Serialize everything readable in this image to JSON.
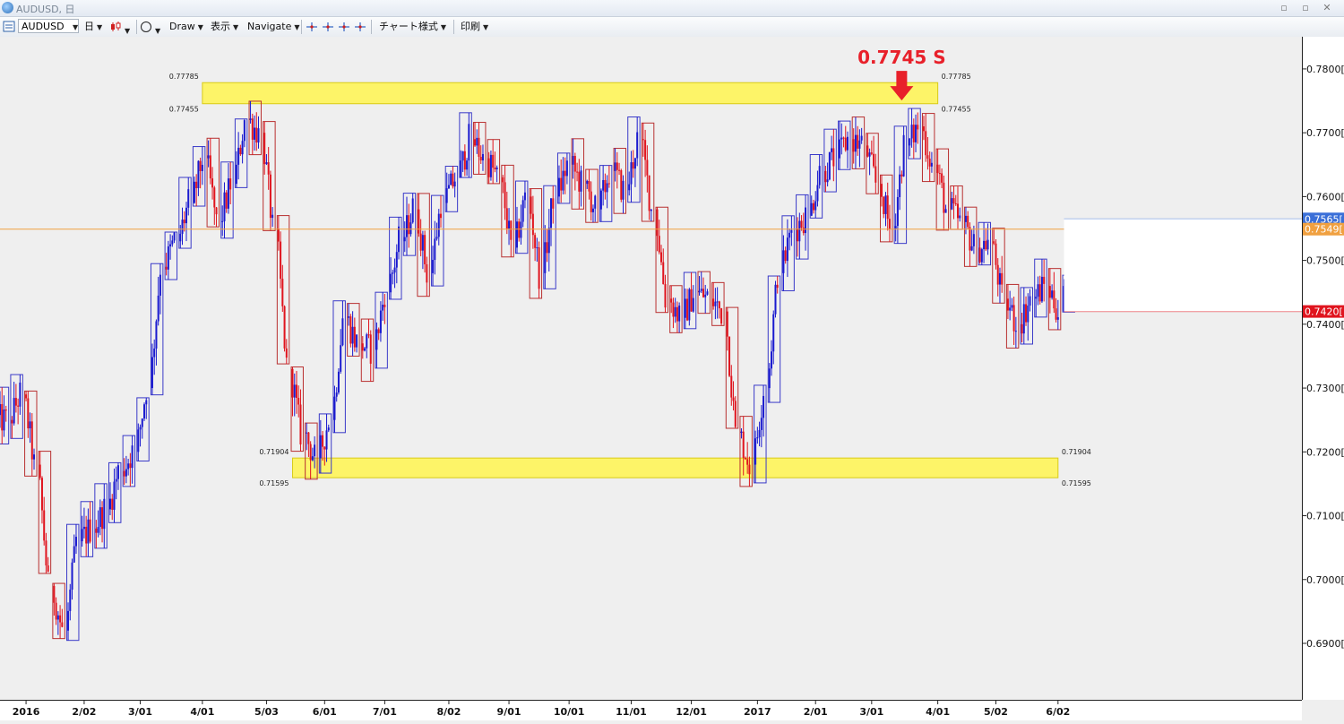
{
  "window": {
    "title": "AUDUSD, 日",
    "buttons": [
      "▫",
      "▫",
      "✕"
    ]
  },
  "toolbar": {
    "symbol": "AUDUSD",
    "period": "日",
    "draw": "Draw",
    "view": "表示",
    "navigate": "Navigate",
    "chart_style": "チャート様式",
    "print": "印刷"
  },
  "colors": {
    "bull": "#1a1acf",
    "bear": "#e0141e",
    "zone": "#fff55a",
    "price_line": "#f0a040",
    "annotation": "#e8202a"
  },
  "chart_data": {
    "type": "candlestick",
    "symbol": "AUDUSD",
    "timeframe": "日",
    "ylim": [
      0.682,
      0.7842
    ],
    "yticks": [
      "0.7800[",
      "0.7700[",
      "0.7600[",
      "0.7500[",
      "0.7400[",
      "0.7300[",
      "0.7200[",
      "0.7100[",
      "0.7000[",
      "0.6900["
    ],
    "ytick_values": [
      0.78,
      0.77,
      0.76,
      0.75,
      0.74,
      0.73,
      0.72,
      0.71,
      0.7,
      0.69
    ],
    "x_date_range": [
      "2015-12-22",
      "2017-06-07"
    ],
    "xticks": [
      {
        "label": "2016",
        "date": "2016-01-04"
      },
      {
        "label": "2/02",
        "date": "2016-02-02"
      },
      {
        "label": "3/01",
        "date": "2016-03-01"
      },
      {
        "label": "4/01",
        "date": "2016-04-01"
      },
      {
        "label": "5/03",
        "date": "2016-05-03"
      },
      {
        "label": "6/01",
        "date": "2016-06-01"
      },
      {
        "label": "7/01",
        "date": "2016-07-01"
      },
      {
        "label": "8/02",
        "date": "2016-08-02"
      },
      {
        "label": "9/01",
        "date": "2016-09-01"
      },
      {
        "label": "10/01",
        "date": "2016-10-01"
      },
      {
        "label": "11/01",
        "date": "2016-11-01"
      },
      {
        "label": "12/01",
        "date": "2016-12-01"
      },
      {
        "label": "2017",
        "date": "2017-01-03"
      },
      {
        "label": "2/01",
        "date": "2017-02-01"
      },
      {
        "label": "3/01",
        "date": "2017-03-01"
      },
      {
        "label": "4/01",
        "date": "2017-04-03"
      },
      {
        "label": "5/02",
        "date": "2017-05-02"
      },
      {
        "label": "6/02",
        "date": "2017-06-02"
      }
    ],
    "weekly_path": [
      [
        "2015-12-21",
        0.725
      ],
      [
        "2015-12-28",
        0.729
      ],
      [
        "2016-01-04",
        0.718
      ],
      [
        "2016-01-11",
        0.699
      ],
      [
        "2016-01-18",
        0.692
      ],
      [
        "2016-01-25",
        0.706
      ],
      [
        "2016-02-01",
        0.708
      ],
      [
        "2016-02-08",
        0.711
      ],
      [
        "2016-02-15",
        0.717
      ],
      [
        "2016-02-22",
        0.72
      ],
      [
        "2016-02-29",
        0.73
      ],
      [
        "2016-03-07",
        0.749
      ],
      [
        "2016-03-14",
        0.753
      ],
      [
        "2016-03-21",
        0.759
      ],
      [
        "2016-03-28",
        0.766
      ],
      [
        "2016-04-04",
        0.756
      ],
      [
        "2016-04-11",
        0.762
      ],
      [
        "2016-04-18",
        0.772
      ],
      [
        "2016-04-25",
        0.77
      ],
      [
        "2016-05-02",
        0.755
      ],
      [
        "2016-05-09",
        0.733
      ],
      [
        "2016-05-16",
        0.723
      ],
      [
        "2016-05-23",
        0.719
      ],
      [
        "2016-05-30",
        0.725
      ],
      [
        "2016-06-06",
        0.741
      ],
      [
        "2016-06-13",
        0.737
      ],
      [
        "2016-06-20",
        0.736
      ],
      [
        "2016-06-27",
        0.745
      ],
      [
        "2016-07-04",
        0.753
      ],
      [
        "2016-07-11",
        0.758
      ],
      [
        "2016-07-18",
        0.748
      ],
      [
        "2016-07-25",
        0.759
      ],
      [
        "2016-08-01",
        0.763
      ],
      [
        "2016-08-08",
        0.769
      ],
      [
        "2016-08-15",
        0.766
      ],
      [
        "2016-08-22",
        0.763
      ],
      [
        "2016-08-29",
        0.752
      ],
      [
        "2016-09-05",
        0.76
      ],
      [
        "2016-09-12",
        0.748
      ],
      [
        "2016-09-19",
        0.76
      ],
      [
        "2016-09-26",
        0.765
      ],
      [
        "2016-10-03",
        0.762
      ],
      [
        "2016-10-10",
        0.758
      ],
      [
        "2016-10-17",
        0.764
      ],
      [
        "2016-10-24",
        0.761
      ],
      [
        "2016-10-31",
        0.769
      ],
      [
        "2016-11-07",
        0.758
      ],
      [
        "2016-11-14",
        0.744
      ],
      [
        "2016-11-21",
        0.741
      ],
      [
        "2016-11-28",
        0.745
      ],
      [
        "2016-12-05",
        0.744
      ],
      [
        "2016-12-12",
        0.742
      ],
      [
        "2016-12-19",
        0.723
      ],
      [
        "2016-12-26",
        0.718
      ],
      [
        "2017-01-02",
        0.73
      ],
      [
        "2017-01-09",
        0.748
      ],
      [
        "2017-01-16",
        0.755
      ],
      [
        "2017-01-23",
        0.757
      ],
      [
        "2017-01-30",
        0.764
      ],
      [
        "2017-02-06",
        0.766
      ],
      [
        "2017-02-13",
        0.769
      ],
      [
        "2017-02-20",
        0.768
      ],
      [
        "2017-02-27",
        0.762
      ],
      [
        "2017-03-06",
        0.755
      ],
      [
        "2017-03-13",
        0.768
      ],
      [
        "2017-03-20",
        0.771
      ],
      [
        "2017-03-27",
        0.765
      ],
      [
        "2017-04-03",
        0.758
      ],
      [
        "2017-04-10",
        0.756
      ],
      [
        "2017-04-17",
        0.752
      ],
      [
        "2017-04-24",
        0.753
      ],
      [
        "2017-05-01",
        0.744
      ],
      [
        "2017-05-08",
        0.74
      ],
      [
        "2017-05-15",
        0.744
      ],
      [
        "2017-05-22",
        0.746
      ],
      [
        "2017-05-29",
        0.742
      ],
      [
        "2017-06-05",
        0.754
      ]
    ],
    "zones": [
      {
        "label_top": "0.77785",
        "label_bottom": "0.77455",
        "high": 0.77785,
        "low": 0.77455,
        "date_from": "2016-04-01",
        "date_to": "2017-04-03"
      },
      {
        "label_top": "0.71904",
        "label_bottom": "0.71595",
        "high": 0.71904,
        "low": 0.71595,
        "date_from": "2016-05-16",
        "date_to": "2017-06-02"
      }
    ],
    "forming_box": {
      "high": 0.7565,
      "low": 0.742,
      "date_from": "2017-06-05"
    },
    "price_line": 0.7549,
    "price_tags": [
      {
        "label": "0.7565[",
        "value": 0.7565,
        "color": "#3a6fd8"
      },
      {
        "label": "0.7549[",
        "value": 0.7549,
        "color": "#f0a040"
      },
      {
        "label": "0.7420[",
        "value": 0.742,
        "color": "#e0141e"
      }
    ],
    "annotation": {
      "text": "0.7745 S",
      "date": "2017-03-16",
      "value": 0.7745
    }
  }
}
